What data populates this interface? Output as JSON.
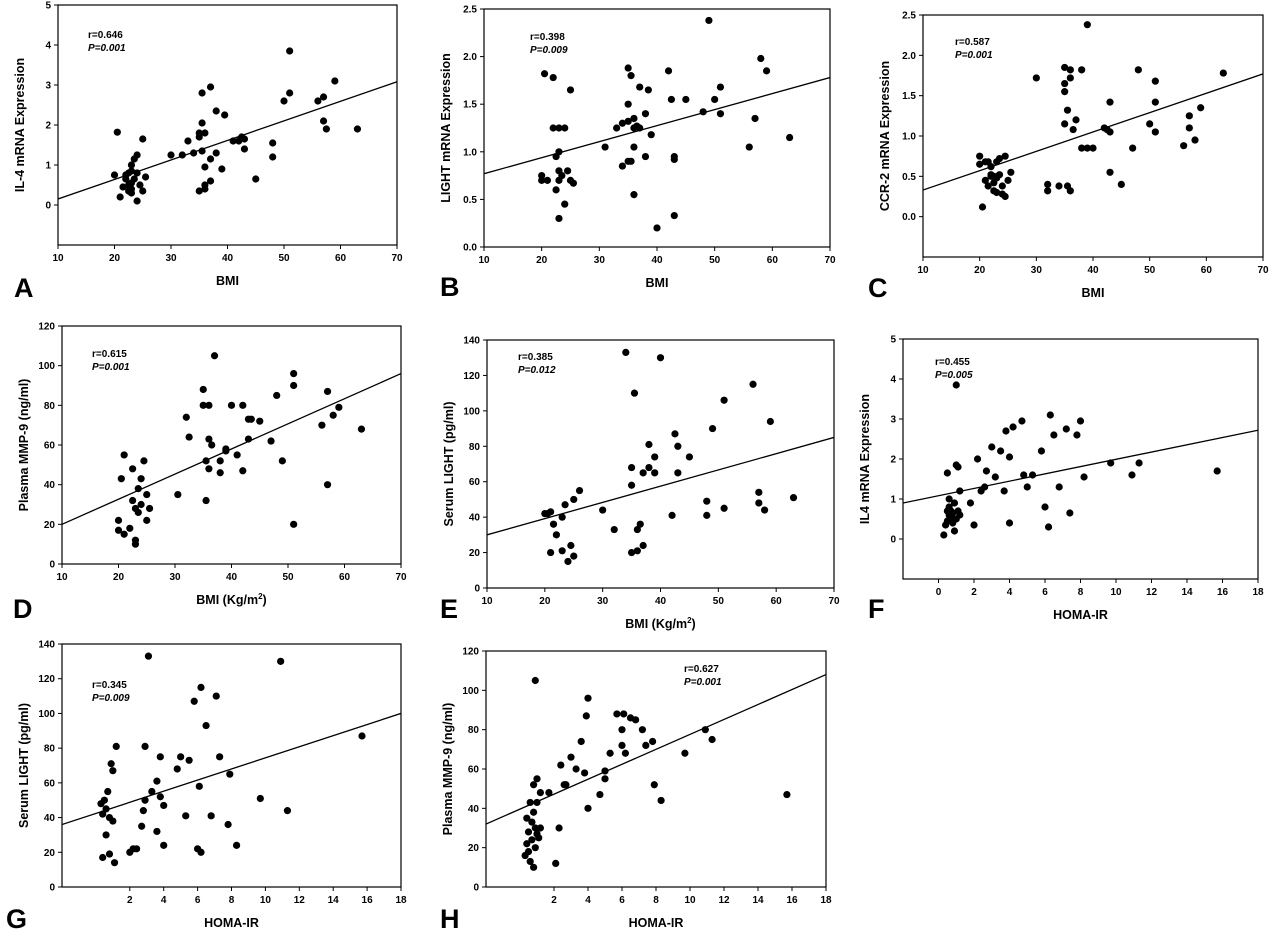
{
  "chart_data": [
    {
      "type": "scatter",
      "panel_label": "A",
      "xlabel": "BMI",
      "ylabel": "IL-4 mRNA Expression",
      "xlim": [
        10,
        70
      ],
      "ylim": [
        -1,
        5
      ],
      "xticks": [
        10,
        20,
        30,
        40,
        50,
        60,
        70
      ],
      "yticks": [
        0,
        1,
        2,
        3,
        4,
        5
      ],
      "stats": {
        "r": "r=0.646",
        "p": "P=0.001"
      },
      "fit": {
        "x": [
          10,
          70
        ],
        "y": [
          0.15,
          3.08
        ]
      },
      "x": [
        20,
        20.5,
        21,
        21.5,
        22,
        22,
        22.5,
        22.5,
        22.5,
        23,
        23,
        23,
        23,
        23,
        23.5,
        23.5,
        24,
        24,
        24,
        24.5,
        25,
        25,
        25.5,
        30,
        32,
        33,
        34,
        35,
        35,
        35,
        35.5,
        35.5,
        35.5,
        36,
        36,
        36,
        36,
        37,
        37,
        37,
        38,
        38,
        39,
        39.5,
        41,
        42,
        42.5,
        43,
        43,
        45,
        48,
        48,
        50,
        51,
        51,
        56,
        57,
        57,
        57.5,
        59,
        63
      ],
      "y": [
        0.75,
        1.82,
        0.2,
        0.45,
        0.65,
        0.75,
        0.35,
        0.5,
        0.8,
        0.55,
        0.3,
        0.85,
        1,
        0.4,
        1.15,
        0.65,
        0.8,
        0.1,
        1.25,
        0.5,
        1.65,
        0.35,
        0.7,
        1.25,
        1.25,
        1.6,
        1.3,
        1.7,
        1.8,
        0.35,
        2.8,
        2.05,
        1.35,
        1.8,
        0.95,
        0.4,
        0.5,
        2.95,
        1.15,
        0.6,
        2.35,
        1.3,
        0.9,
        2.25,
        1.6,
        1.6,
        1.7,
        1.4,
        1.65,
        0.65,
        1.2,
        1.55,
        2.6,
        2.8,
        3.85,
        2.6,
        2.7,
        2.1,
        1.9,
        3.1,
        1.9
      ]
    },
    {
      "type": "scatter",
      "panel_label": "B",
      "xlabel": "BMI",
      "ylabel": "LIGHT mRNA Expression",
      "xlim": [
        10,
        70
      ],
      "ylim": [
        0,
        2.5
      ],
      "xticks": [
        10,
        20,
        30,
        40,
        50,
        60,
        70
      ],
      "yticks": [
        "0.0",
        "0.5",
        "1.0",
        "1.5",
        "2.0",
        "2.5"
      ],
      "stats": {
        "r": "r=0.398",
        "p": "P=0.009"
      },
      "fit": {
        "x": [
          10,
          70
        ],
        "y": [
          0.77,
          1.78
        ]
      },
      "x": [
        20,
        20,
        20.5,
        21,
        22,
        22,
        22.5,
        22.5,
        23,
        23,
        23,
        23,
        23,
        23.5,
        24,
        24,
        24.5,
        25,
        25,
        25.5,
        31,
        33,
        34,
        34,
        35,
        35,
        35,
        35,
        35.5,
        35.5,
        36,
        36,
        36,
        36,
        36.5,
        37,
        37,
        38,
        38,
        38.5,
        39,
        40,
        42,
        42.5,
        43,
        43,
        43,
        45,
        48,
        49,
        50,
        51,
        51,
        56,
        57,
        58,
        59,
        63
      ],
      "y": [
        0.75,
        0.7,
        1.82,
        0.7,
        1.25,
        1.78,
        0.95,
        0.6,
        1.0,
        1.25,
        0.8,
        0.7,
        0.3,
        0.75,
        1.25,
        0.45,
        0.8,
        0.7,
        1.65,
        0.67,
        1.05,
        1.25,
        1.3,
        0.85,
        1.88,
        1.5,
        1.32,
        0.9,
        1.8,
        0.9,
        1.35,
        1.25,
        0.55,
        1.05,
        1.27,
        1.68,
        1.25,
        0.95,
        1.4,
        1.65,
        1.18,
        0.2,
        1.85,
        1.55,
        0.95,
        0.92,
        0.33,
        1.55,
        1.42,
        2.38,
        1.55,
        1.68,
        1.4,
        1.05,
        1.35,
        1.98,
        1.85,
        1.15
      ]
    },
    {
      "type": "scatter",
      "panel_label": "C",
      "xlabel": "BMI",
      "ylabel": "CCR-2 mRNA Expression",
      "xlim": [
        10,
        70
      ],
      "ylim": [
        -0.5,
        2.5
      ],
      "xticks": [
        10,
        20,
        30,
        40,
        50,
        60,
        70
      ],
      "yticks": [
        "0.0",
        "0.5",
        "1.0",
        "1.5",
        "2.0",
        "2.5"
      ],
      "stats": {
        "r": "r=0.587",
        "p": "P=0.001"
      },
      "fit": {
        "x": [
          10,
          70
        ],
        "y": [
          0.33,
          1.77
        ]
      },
      "x": [
        20,
        20,
        20.5,
        21,
        21,
        21.5,
        21.5,
        22,
        22,
        22,
        22.5,
        22.5,
        22.5,
        23,
        23,
        23,
        23.5,
        23.5,
        24,
        24,
        24.5,
        24.5,
        25,
        25.5,
        30,
        32,
        32,
        34,
        35,
        35,
        35,
        35,
        35.5,
        35.5,
        36,
        36,
        36,
        36.5,
        37,
        38,
        38,
        39,
        39,
        40,
        42,
        42.5,
        43,
        43,
        43,
        45,
        47,
        48,
        50,
        51,
        51,
        51,
        56,
        57,
        57,
        58,
        59,
        63
      ],
      "y": [
        0.75,
        0.65,
        0.12,
        0.68,
        0.45,
        0.38,
        0.68,
        0.52,
        0.62,
        0.5,
        0.42,
        0.5,
        0.32,
        0.48,
        0.68,
        0.3,
        0.52,
        0.72,
        0.38,
        0.28,
        0.75,
        0.25,
        0.45,
        0.55,
        1.72,
        0.4,
        0.32,
        0.38,
        1.85,
        1.65,
        1.55,
        1.15,
        1.32,
        0.38,
        1.72,
        1.82,
        0.32,
        1.08,
        1.2,
        0.85,
        1.82,
        2.38,
        0.85,
        0.85,
        1.1,
        1.08,
        1.05,
        1.42,
        0.55,
        0.4,
        0.85,
        1.82,
        1.15,
        1.68,
        1.42,
        1.05,
        0.88,
        1.25,
        1.1,
        0.95,
        1.35,
        1.78
      ]
    },
    {
      "type": "scatter",
      "panel_label": "D",
      "xlabel": "BMI (Kg/m",
      "xlabel_sup": "2",
      "xlabel_end": ")",
      "ylabel": "Plasma MMP-9 (ng/ml)",
      "xlim": [
        10,
        70
      ],
      "ylim": [
        0,
        120
      ],
      "xticks": [
        10,
        20,
        30,
        40,
        50,
        60,
        70
      ],
      "yticks": [
        0,
        20,
        40,
        60,
        80,
        100,
        120
      ],
      "stats": {
        "r": "r=0.615",
        "p": "P=0.001"
      },
      "fit": {
        "x": [
          10,
          70
        ],
        "y": [
          20,
          96
        ]
      },
      "x": [
        20,
        20,
        20.5,
        21,
        21,
        22,
        22.5,
        22.5,
        23,
        23,
        23,
        23.5,
        23.5,
        24,
        24,
        24.5,
        25,
        25,
        25.5,
        30.5,
        32,
        32.5,
        35,
        35,
        35.5,
        35.5,
        36,
        36,
        36,
        36.5,
        37,
        38,
        38,
        39,
        39,
        40,
        41,
        42,
        42,
        43,
        43,
        43.5,
        45,
        47,
        48,
        49,
        51,
        51,
        51,
        56,
        57,
        57,
        58,
        59,
        63
      ],
      "y": [
        22,
        17,
        43,
        55,
        15,
        18,
        32,
        48,
        28,
        12,
        10,
        38,
        26,
        43,
        30,
        52,
        22,
        35,
        28,
        35,
        74,
        64,
        88,
        80,
        52,
        32,
        48,
        63,
        80,
        60,
        105,
        52,
        46,
        57,
        58,
        80,
        55,
        80,
        47,
        73,
        63,
        73,
        72,
        62,
        85,
        52,
        90,
        96,
        20,
        70,
        87,
        40,
        75,
        79,
        68
      ]
    },
    {
      "type": "scatter",
      "panel_label": "E",
      "xlabel": "BMI (Kg/m",
      "xlabel_sup": "2",
      "xlabel_end": ")",
      "ylabel": "Serum LIGHT (pg/ml)",
      "xlim": [
        10,
        70
      ],
      "ylim": [
        0,
        140
      ],
      "xticks": [
        10,
        20,
        30,
        40,
        50,
        60,
        70
      ],
      "yticks": [
        0,
        20,
        40,
        60,
        80,
        100,
        120,
        140
      ],
      "stats": {
        "r": "r=0.385",
        "p": "P=0.012"
      },
      "fit": {
        "x": [
          10,
          70
        ],
        "y": [
          30,
          85
        ]
      },
      "x": [
        20,
        20.5,
        21,
        21,
        21.5,
        22,
        23,
        23,
        23.5,
        24,
        24.5,
        25,
        25,
        26,
        30,
        32,
        34,
        35,
        35,
        35,
        35.5,
        36,
        36,
        36.5,
        37,
        37,
        38,
        38,
        39,
        39,
        40,
        42,
        42.5,
        43,
        43,
        45,
        48,
        48,
        49,
        51,
        51,
        56,
        57,
        57,
        58,
        59,
        63
      ],
      "y": [
        42,
        42,
        20,
        43,
        36,
        30,
        21,
        40,
        47,
        15,
        24,
        50,
        18,
        55,
        44,
        33,
        133,
        58,
        20,
        68,
        110,
        33,
        21,
        36,
        24,
        65,
        68,
        81,
        74,
        65,
        130,
        41,
        87,
        80,
        65,
        74,
        49,
        41,
        90,
        45,
        106,
        115,
        54,
        48,
        44,
        94,
        51
      ]
    },
    {
      "type": "scatter",
      "panel_label": "F",
      "xlabel": "HOMA-IR",
      "ylabel": "IL4 mRNA Expression",
      "xlim": [
        -2,
        18
      ],
      "ylim": [
        -1,
        5
      ],
      "xticks": [
        0,
        2,
        4,
        6,
        8,
        10,
        12,
        14,
        16,
        18
      ],
      "yticks": [
        0,
        1,
        2,
        3,
        4,
        5
      ],
      "stats": {
        "r": "r=0.455",
        "p": "P=0.005"
      },
      "fit": {
        "x": [
          -2,
          18
        ],
        "y": [
          0.9,
          2.72
        ]
      },
      "x": [
        0.3,
        0.4,
        0.5,
        0.5,
        0.5,
        0.6,
        0.6,
        0.6,
        0.7,
        0.7,
        0.8,
        0.8,
        0.9,
        0.9,
        1,
        1,
        1,
        1.1,
        1.1,
        1.2,
        1.2,
        1.8,
        2,
        2.2,
        2.4,
        2.6,
        2.7,
        3,
        3.2,
        3.5,
        3.7,
        3.8,
        4,
        4,
        4.2,
        4.7,
        4.8,
        5,
        5.3,
        5.8,
        6,
        6.2,
        6.3,
        6.5,
        6.8,
        7.2,
        7.4,
        7.8,
        8,
        8.2,
        9.7,
        10.9,
        11.3,
        15.7
      ],
      "y": [
        0.1,
        0.35,
        0.7,
        1.65,
        0.45,
        0.6,
        0.8,
        1.0,
        0.55,
        0.7,
        0.4,
        0.65,
        0.9,
        0.2,
        0.5,
        1.85,
        3.85,
        0.7,
        1.8,
        0.6,
        1.2,
        0.9,
        0.35,
        2.0,
        1.2,
        1.3,
        1.7,
        2.3,
        1.55,
        2.2,
        1.2,
        2.7,
        2.05,
        0.4,
        2.8,
        2.95,
        1.6,
        1.3,
        1.6,
        2.2,
        0.8,
        0.3,
        3.1,
        2.6,
        1.3,
        2.75,
        0.65,
        2.6,
        2.95,
        1.55,
        1.9,
        1.6,
        1.9,
        1.7
      ]
    },
    {
      "type": "scatter",
      "panel_label": "G",
      "xlabel": "HOMA-IR",
      "ylabel": "Serum LIGHT (pg/ml)",
      "xlim": [
        -2,
        18
      ],
      "ylim": [
        0,
        140
      ],
      "xticks": [
        2,
        4,
        6,
        8,
        10,
        12,
        14,
        16,
        18
      ],
      "yticks": [
        0,
        20,
        40,
        60,
        80,
        100,
        120,
        140
      ],
      "stats": {
        "r": "r=0.345",
        "p": "P=0.009"
      },
      "fit": {
        "x": [
          -2,
          18
        ],
        "y": [
          36,
          100
        ]
      },
      "x": [
        0.3,
        0.4,
        0.4,
        0.5,
        0.6,
        0.6,
        0.7,
        0.8,
        0.8,
        0.9,
        1,
        1,
        1.1,
        1.2,
        2,
        2.2,
        2.4,
        2.7,
        2.8,
        2.9,
        2.9,
        3.1,
        3.3,
        3.6,
        3.6,
        3.8,
        3.8,
        4,
        4,
        4.8,
        5,
        5.3,
        5.5,
        5.8,
        6,
        6.1,
        6.2,
        6.2,
        6.5,
        6.8,
        7.1,
        7.3,
        7.8,
        7.9,
        8.3,
        9.7,
        10.9,
        11.3,
        15.7
      ],
      "y": [
        48,
        17,
        42,
        50,
        45,
        30,
        55,
        40,
        19,
        71,
        38,
        67,
        14,
        81,
        20,
        22,
        22,
        35,
        44,
        50,
        81,
        133,
        55,
        32,
        61,
        52,
        75,
        47,
        24,
        68,
        75,
        41,
        73,
        107,
        22,
        58,
        20,
        115,
        93,
        41,
        110,
        75,
        36,
        65,
        24,
        51,
        130,
        44,
        87
      ]
    },
    {
      "type": "scatter",
      "panel_label": "H",
      "xlabel": "HOMA-IR",
      "ylabel": "Plasma MMP-9 (ng/ml)",
      "xlim": [
        -2,
        18
      ],
      "ylim": [
        0,
        120
      ],
      "xticks": [
        2,
        4,
        6,
        8,
        10,
        12,
        14,
        16,
        18
      ],
      "yticks": [
        0,
        20,
        40,
        60,
        80,
        100,
        120
      ],
      "stats": {
        "r": "r=0.627",
        "p": "P=0.001"
      },
      "fit": {
        "x": [
          -2,
          18
        ],
        "y": [
          32,
          108
        ]
      },
      "x": [
        0.3,
        0.4,
        0.4,
        0.5,
        0.5,
        0.6,
        0.6,
        0.7,
        0.7,
        0.8,
        0.8,
        0.8,
        0.9,
        0.9,
        0.9,
        1,
        1,
        1,
        1.1,
        1.2,
        1.2,
        1.7,
        2.1,
        2.3,
        2.4,
        2.6,
        2.7,
        3,
        3.3,
        3.6,
        3.8,
        3.9,
        4,
        4,
        4.7,
        5,
        5,
        5.3,
        5.7,
        6,
        6,
        6.1,
        6.2,
        6.5,
        6.8,
        7.2,
        7.4,
        7.8,
        7.9,
        8.3,
        9.7,
        10.9,
        11.3,
        15.7
      ],
      "y": [
        16,
        22,
        35,
        18,
        28,
        43,
        13,
        24,
        33,
        10,
        38,
        52,
        20,
        30,
        105,
        27,
        55,
        43,
        25,
        30,
        48,
        48,
        12,
        30,
        62,
        52,
        52,
        66,
        60,
        74,
        58,
        87,
        96,
        40,
        47,
        55,
        59,
        68,
        88,
        80,
        72,
        88,
        68,
        86,
        85,
        80,
        72,
        74,
        52,
        44,
        68,
        80,
        75,
        47
      ]
    }
  ]
}
